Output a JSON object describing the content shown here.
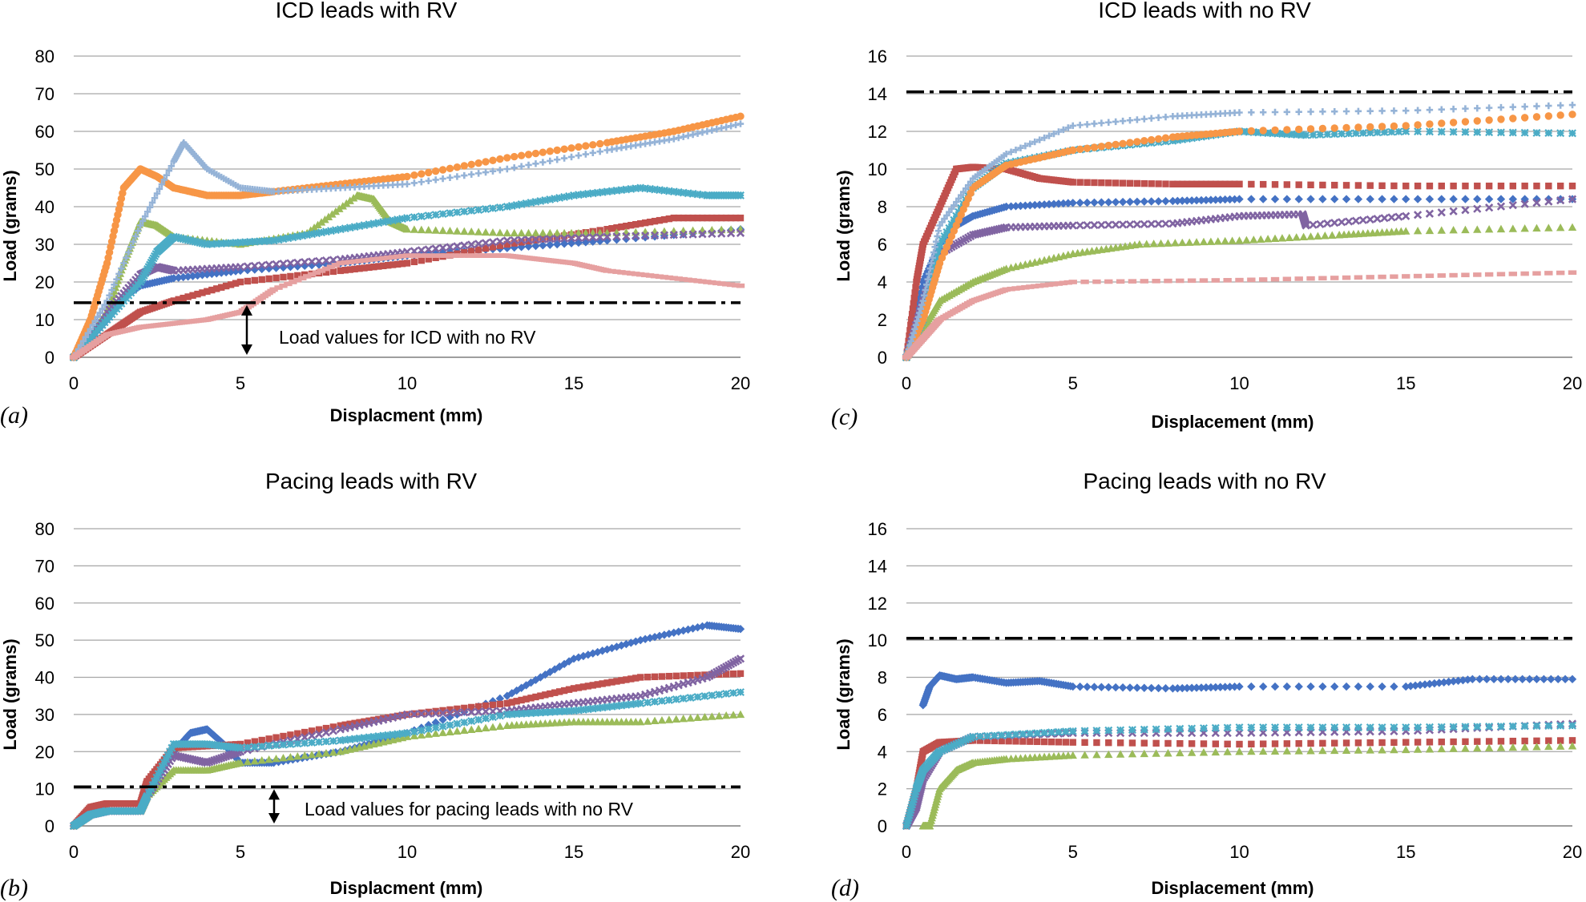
{
  "chart_data": [
    {
      "panel": "(a)",
      "type": "scatter",
      "title": "ICD leads with RV",
      "xlabel": "Displacment (mm)",
      "ylabel": "Load (grams)",
      "xlim": [
        0,
        20
      ],
      "ylim": [
        0,
        80
      ],
      "xticks": [
        "0",
        "5",
        "10",
        "15",
        "20"
      ],
      "yticks": [
        "0",
        "10",
        "20",
        "30",
        "40",
        "50",
        "60",
        "70",
        "80"
      ],
      "grid": "horizontal",
      "reference_line": {
        "y": 14.5,
        "style": "dash-dot"
      },
      "annotation": "Load values for ICD with no RV",
      "series": [
        {
          "name": "blue",
          "color": "#4472c4",
          "marker": "diamond",
          "x": [
            0,
            1,
            1.5,
            2,
            3,
            5,
            8,
            10,
            13,
            16,
            20
          ],
          "y": [
            0,
            10,
            16,
            19,
            21,
            23,
            25,
            27,
            29,
            31,
            34
          ]
        },
        {
          "name": "red",
          "color": "#c0504d",
          "marker": "square",
          "x": [
            0,
            0.5,
            1,
            1.5,
            2,
            3,
            5,
            8,
            10,
            13,
            16,
            18,
            20
          ],
          "y": [
            0,
            3,
            6,
            9,
            12,
            15,
            20,
            23,
            25,
            30,
            34,
            37,
            37
          ]
        },
        {
          "name": "green",
          "color": "#9bbb59",
          "marker": "triangle",
          "x": [
            0,
            1,
            1.5,
            2,
            2.5,
            3,
            5,
            7,
            8.5,
            9,
            9.5,
            10,
            13,
            16,
            20
          ],
          "y": [
            0,
            12,
            25,
            36,
            35,
            32,
            30,
            33,
            43,
            42,
            36,
            34,
            33,
            33,
            34
          ]
        },
        {
          "name": "purple",
          "color": "#8064a2",
          "marker": "x",
          "x": [
            0,
            1,
            2,
            2.5,
            3,
            5,
            8,
            10,
            13,
            16,
            20
          ],
          "y": [
            0,
            12,
            22,
            24,
            23,
            24,
            26,
            28,
            31,
            32,
            33
          ]
        },
        {
          "name": "cyan",
          "color": "#4bacc6",
          "marker": "star",
          "x": [
            0,
            1,
            2,
            2.5,
            3,
            4,
            6,
            8,
            10,
            13,
            15,
            17,
            19,
            20
          ],
          "y": [
            0,
            10,
            20,
            28,
            32,
            30,
            31,
            34,
            37,
            40,
            43,
            45,
            43,
            43
          ]
        },
        {
          "name": "orange",
          "color": "#f79646",
          "marker": "circle",
          "x": [
            0,
            0.5,
            1,
            1.5,
            2,
            2.5,
            3,
            4,
            5,
            6,
            8,
            10,
            13,
            16,
            18,
            20
          ],
          "y": [
            0,
            10,
            25,
            45,
            50,
            48,
            45,
            43,
            43,
            44,
            46,
            48,
            53,
            57,
            60,
            64
          ]
        },
        {
          "name": "light-blue",
          "color": "#95b3d7",
          "marker": "plus",
          "x": [
            0,
            1,
            2,
            3,
            3.3,
            4,
            5,
            6,
            8,
            10,
            13,
            16,
            18,
            20
          ],
          "y": [
            0,
            15,
            35,
            52,
            57,
            50,
            45,
            44,
            45,
            46,
            50,
            55,
            58,
            62
          ]
        },
        {
          "name": "pink",
          "color": "#e6a0a0",
          "marker": "dash",
          "x": [
            0,
            1,
            2,
            3,
            4,
            5,
            6,
            8,
            10,
            12,
            13,
            14,
            15,
            16,
            18,
            20
          ],
          "y": [
            0,
            6,
            8,
            9,
            10,
            12,
            18,
            25,
            27,
            27,
            27,
            26,
            25,
            23,
            21,
            19
          ]
        }
      ]
    },
    {
      "panel": "(b)",
      "type": "scatter",
      "title": "Pacing leads with RV",
      "xlabel": "Displacment (mm)",
      "ylabel": "Load (grams)",
      "xlim": [
        0,
        20
      ],
      "ylim": [
        0,
        80
      ],
      "xticks": [
        "0",
        "5",
        "10",
        "15",
        "20"
      ],
      "yticks": [
        "0",
        "10",
        "20",
        "30",
        "40",
        "50",
        "60",
        "70",
        "80"
      ],
      "grid": "horizontal",
      "reference_line": {
        "y": 10.5,
        "style": "dash-dot"
      },
      "annotation": "Load values for pacing leads with no RV",
      "series": [
        {
          "name": "blue",
          "color": "#4472c4",
          "marker": "diamond",
          "x": [
            0,
            0.5,
            1,
            2,
            2.2,
            3,
            3.5,
            4,
            4.5,
            5,
            6,
            8,
            10,
            13,
            15,
            17,
            19,
            20
          ],
          "y": [
            0,
            3,
            4,
            4,
            8,
            20,
            25,
            26,
            22,
            17,
            17,
            20,
            25,
            35,
            45,
            50,
            54,
            53
          ]
        },
        {
          "name": "red",
          "color": "#c0504d",
          "marker": "square",
          "x": [
            0,
            0.5,
            1,
            2,
            2.2,
            3,
            5,
            8,
            10,
            13,
            15,
            17,
            20
          ],
          "y": [
            0,
            5,
            6,
            6,
            12,
            21,
            22,
            27,
            30,
            33,
            37,
            40,
            41
          ]
        },
        {
          "name": "green",
          "color": "#9bbb59",
          "marker": "triangle",
          "x": [
            0,
            0.5,
            1,
            2,
            2.2,
            3,
            4,
            5,
            8,
            10,
            13,
            15,
            17,
            20
          ],
          "y": [
            0,
            3,
            4,
            4,
            8,
            15,
            15,
            17,
            20,
            24,
            27,
            28,
            28,
            30
          ]
        },
        {
          "name": "purple",
          "color": "#8064a2",
          "marker": "x",
          "x": [
            0,
            0.5,
            1,
            2,
            2.2,
            3,
            4,
            5,
            8,
            10,
            13,
            15,
            17,
            19,
            20
          ],
          "y": [
            0,
            3,
            4,
            4,
            8,
            19,
            17,
            20,
            26,
            30,
            31,
            33,
            35,
            40,
            45
          ]
        },
        {
          "name": "cyan",
          "color": "#4bacc6",
          "marker": "star",
          "x": [
            0,
            0.5,
            1,
            2,
            2.2,
            3,
            4,
            5,
            8,
            10,
            13,
            15,
            17,
            20
          ],
          "y": [
            0,
            3,
            4,
            4,
            8,
            22,
            22,
            21,
            23,
            25,
            30,
            31,
            33,
            36
          ]
        }
      ]
    },
    {
      "panel": "(c)",
      "type": "scatter",
      "title": "ICD leads with no RV",
      "xlabel": "Displacement (mm)",
      "ylabel": "Load (grams)",
      "xlim": [
        0,
        20
      ],
      "ylim": [
        0,
        16
      ],
      "xticks": [
        "0",
        "5",
        "10",
        "15",
        "20"
      ],
      "yticks": [
        "0",
        "2",
        "4",
        "6",
        "8",
        "10",
        "12",
        "14",
        "16"
      ],
      "grid": "horizontal",
      "reference_line": {
        "y": 14.1,
        "style": "dash-dot"
      },
      "series": [
        {
          "name": "blue",
          "color": "#4472c4",
          "marker": "diamond",
          "x": [
            0,
            0.5,
            1,
            1.5,
            2,
            3,
            5,
            8,
            10,
            15,
            20
          ],
          "y": [
            0,
            4,
            6,
            7,
            7.5,
            8,
            8.2,
            8.3,
            8.4,
            8.4,
            8.4
          ]
        },
        {
          "name": "red",
          "color": "#c0504d",
          "marker": "square",
          "x": [
            0,
            0.3,
            0.5,
            1,
            1.5,
            2,
            3,
            4,
            5,
            8,
            10,
            15,
            20
          ],
          "y": [
            0,
            4,
            6,
            8,
            10,
            10.1,
            10,
            9.5,
            9.3,
            9.2,
            9.2,
            9.1,
            9.1
          ]
        },
        {
          "name": "green",
          "color": "#9bbb59",
          "marker": "triangle",
          "x": [
            0,
            0.5,
            1,
            2,
            3,
            5,
            7,
            10,
            13,
            15,
            20
          ],
          "y": [
            0,
            1.5,
            3,
            4,
            4.7,
            5.5,
            6,
            6.2,
            6.5,
            6.7,
            6.9
          ]
        },
        {
          "name": "purple",
          "color": "#8064a2",
          "marker": "x",
          "x": [
            0,
            0.5,
            1,
            2,
            3,
            5,
            8,
            10,
            11.9,
            12,
            15,
            20
          ],
          "y": [
            0,
            3,
            5.5,
            6.5,
            6.9,
            7,
            7.1,
            7.5,
            7.6,
            7,
            7.5,
            8.4
          ]
        },
        {
          "name": "cyan",
          "color": "#4bacc6",
          "marker": "star",
          "x": [
            0,
            0.5,
            1,
            2,
            3,
            5,
            8,
            10,
            12,
            15,
            20
          ],
          "y": [
            0,
            2,
            6,
            9,
            10.3,
            11,
            11.5,
            12,
            11.8,
            12,
            11.9
          ]
        },
        {
          "name": "orange",
          "color": "#f79646",
          "marker": "circle",
          "x": [
            0,
            0.5,
            1,
            2,
            3,
            5,
            8,
            10,
            15,
            20
          ],
          "y": [
            0,
            2,
            5,
            9,
            10.2,
            11,
            11.7,
            12,
            12.3,
            12.9
          ]
        },
        {
          "name": "light-blue",
          "color": "#95b3d7",
          "marker": "plus",
          "x": [
            0,
            0.5,
            1,
            2,
            3,
            5,
            8,
            10,
            15,
            20
          ],
          "y": [
            0,
            3,
            7,
            9.5,
            10.8,
            12.3,
            12.8,
            13,
            13.1,
            13.4
          ]
        },
        {
          "name": "pink",
          "color": "#e6a0a0",
          "marker": "dash",
          "x": [
            0,
            0.5,
            1,
            2,
            3,
            5,
            10,
            15,
            20
          ],
          "y": [
            0,
            1,
            2,
            3,
            3.6,
            4,
            4.1,
            4.3,
            4.5
          ]
        }
      ]
    },
    {
      "panel": "(d)",
      "type": "scatter",
      "title": "Pacing leads with no RV",
      "xlabel": "Displacement (mm)",
      "ylabel": "Load (grams)",
      "xlim": [
        0,
        20
      ],
      "ylim": [
        0,
        16
      ],
      "xticks": [
        "0",
        "5",
        "10",
        "15",
        "20"
      ],
      "yticks": [
        "0",
        "2",
        "4",
        "6",
        "8",
        "10",
        "12",
        "14",
        "16"
      ],
      "grid": "horizontal",
      "reference_line": {
        "y": 10.1,
        "style": "dash-dot"
      },
      "series": [
        {
          "name": "blue",
          "color": "#4472c4",
          "marker": "diamond",
          "x": [
            0.5,
            0.7,
            1,
            1.5,
            2,
            3,
            4,
            5,
            8,
            10,
            15,
            17,
            20
          ],
          "y": [
            6.5,
            7.5,
            8.1,
            7.9,
            8,
            7.7,
            7.8,
            7.5,
            7.4,
            7.5,
            7.5,
            7.9,
            7.9
          ]
        },
        {
          "name": "red",
          "color": "#c0504d",
          "marker": "square",
          "x": [
            0,
            0.3,
            0.5,
            1,
            2,
            5,
            10,
            15,
            20
          ],
          "y": [
            0,
            2,
            4,
            4.5,
            4.6,
            4.5,
            4.4,
            4.5,
            4.6
          ]
        },
        {
          "name": "green",
          "color": "#9bbb59",
          "marker": "triangle",
          "x": [
            0.5,
            0.7,
            1,
            1.5,
            2,
            3,
            5,
            10,
            15,
            20
          ],
          "y": [
            0,
            0,
            2,
            3,
            3.4,
            3.6,
            3.8,
            4,
            4.1,
            4.3
          ]
        },
        {
          "name": "purple",
          "color": "#8064a2",
          "marker": "x",
          "x": [
            0,
            0.3,
            0.5,
            1,
            2,
            5,
            10,
            15,
            20
          ],
          "y": [
            0,
            1,
            2.5,
            4,
            4.8,
            5,
            5,
            5.1,
            5.5
          ]
        },
        {
          "name": "cyan",
          "color": "#4bacc6",
          "marker": "star",
          "x": [
            0,
            0.3,
            0.5,
            1,
            2,
            5,
            10,
            15,
            20
          ],
          "y": [
            0,
            2,
            3,
            4,
            4.8,
            5.1,
            5.3,
            5.3,
            5.4
          ]
        }
      ]
    }
  ]
}
